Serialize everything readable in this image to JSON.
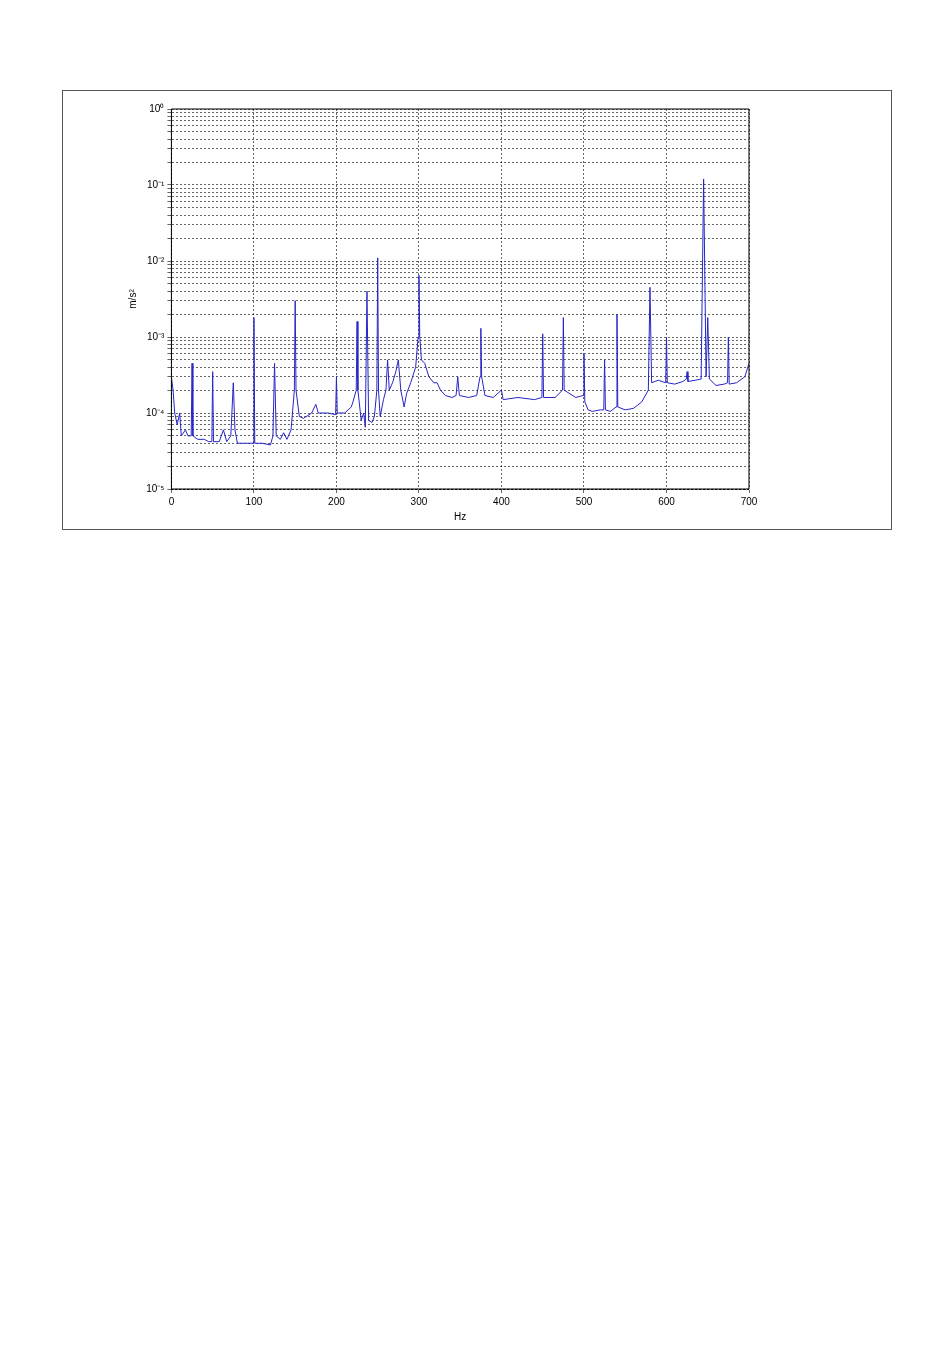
{
  "chart_data": {
    "type": "line",
    "xlabel": "Hz",
    "ylabel": "m/s²",
    "log": "y",
    "grid": true,
    "legend": false,
    "marker": "none",
    "line_style": "solid",
    "xlim": [
      0,
      700
    ],
    "xticks": [
      0,
      100,
      200,
      300,
      400,
      500,
      600,
      700
    ],
    "ylim": [
      1e-05,
      1
    ],
    "yticks": [
      {
        "value": 1e-05,
        "label": "10⁻⁵"
      },
      {
        "value": 2e-05,
        "label": null
      },
      {
        "value": 3e-05,
        "label": null
      },
      {
        "value": 4e-05,
        "label": null
      },
      {
        "value": 5e-05,
        "label": null
      },
      {
        "value": 6e-05,
        "label": null
      },
      {
        "value": 7e-05,
        "label": null
      },
      {
        "value": 8e-05,
        "label": null
      },
      {
        "value": 9e-05,
        "label": null
      },
      {
        "value": 0.0001,
        "label": "10⁻⁴"
      },
      {
        "value": 0.0002,
        "label": null
      },
      {
        "value": 0.0003,
        "label": null
      },
      {
        "value": 0.0004,
        "label": null
      },
      {
        "value": 0.0005,
        "label": null
      },
      {
        "value": 0.0006,
        "label": null
      },
      {
        "value": 0.0007,
        "label": null
      },
      {
        "value": 0.0008,
        "label": null
      },
      {
        "value": 0.0009,
        "label": null
      },
      {
        "value": 0.001,
        "label": "10⁻³"
      },
      {
        "value": 0.002,
        "label": null
      },
      {
        "value": 0.003,
        "label": null
      },
      {
        "value": 0.004,
        "label": null
      },
      {
        "value": 0.005,
        "label": null
      },
      {
        "value": 0.006,
        "label": null
      },
      {
        "value": 0.007,
        "label": null
      },
      {
        "value": 0.008,
        "label": null
      },
      {
        "value": 0.009,
        "label": null
      },
      {
        "value": 0.01,
        "label": "10⁻²"
      },
      {
        "value": 0.02,
        "label": null
      },
      {
        "value": 0.03,
        "label": null
      },
      {
        "value": 0.04,
        "label": null
      },
      {
        "value": 0.05,
        "label": null
      },
      {
        "value": 0.06,
        "label": null
      },
      {
        "value": 0.07,
        "label": null
      },
      {
        "value": 0.08,
        "label": null
      },
      {
        "value": 0.09,
        "label": null
      },
      {
        "value": 0.1,
        "label": "10⁻¹"
      },
      {
        "value": 0.2,
        "label": null
      },
      {
        "value": 0.3,
        "label": null
      },
      {
        "value": 0.4,
        "label": null
      },
      {
        "value": 0.5,
        "label": null
      },
      {
        "value": 0.6,
        "label": null
      },
      {
        "value": 0.7,
        "label": null
      },
      {
        "value": 0.8,
        "label": null
      },
      {
        "value": 0.9,
        "label": null
      },
      {
        "value": 1,
        "label": "10⁰"
      }
    ],
    "series": [
      {
        "color": "#2626c8",
        "x": [
          0,
          2,
          4,
          7,
          10,
          12,
          17,
          20,
          24,
          25,
          26,
          32,
          40,
          45,
          49,
          50,
          51,
          58,
          63,
          67,
          72,
          75,
          77,
          80,
          90,
          99,
          100,
          101,
          110,
          120,
          123,
          125,
          127,
          132,
          136,
          140,
          145,
          149,
          150,
          151,
          155,
          160,
          170,
          175,
          178,
          190,
          199,
          200,
          201,
          210,
          218,
          220,
          224,
          225,
          226,
          230,
          233,
          235,
          237,
          239,
          243,
          246,
          249,
          250,
          251,
          253,
          257,
          260,
          262,
          264,
          268,
          272,
          275,
          278,
          282,
          285,
          290,
          296,
          299,
          300,
          301,
          303,
          307,
          312,
          318,
          322,
          326,
          332,
          340,
          345,
          347,
          349,
          360,
          370,
          374,
          375,
          376,
          380,
          390,
          400,
          402,
          420,
          440,
          449,
          450,
          451,
          465,
          474,
          475,
          476,
          490,
          499,
          500,
          501,
          505,
          510,
          520,
          524,
          525,
          526,
          532,
          539,
          540,
          541,
          550,
          560,
          570,
          578,
          580,
          582,
          590,
          599,
          600,
          601,
          610,
          620,
          624,
          625,
          626,
          635,
          642,
          645,
          648,
          650,
          652,
          660,
          670,
          674,
          675,
          676,
          685,
          695,
          700
        ],
        "values": [
          0.0003,
          0.0002,
          0.0001,
          7e-05,
          0.0001,
          5e-05,
          6e-05,
          5e-05,
          5e-05,
          0.00045,
          5e-05,
          4.5e-05,
          4.5e-05,
          4.2e-05,
          4.2e-05,
          0.00035,
          4.2e-05,
          4.2e-05,
          6e-05,
          4.2e-05,
          5e-05,
          0.00025,
          6e-05,
          4e-05,
          4e-05,
          4e-05,
          0.0018,
          4e-05,
          4e-05,
          3.8e-05,
          5e-05,
          0.00045,
          5e-05,
          4.5e-05,
          5.5e-05,
          4.5e-05,
          6e-05,
          0.0002,
          0.003,
          0.0002,
          9e-05,
          8.5e-05,
          0.0001,
          0.00013,
          0.0001,
          0.0001,
          9.5e-05,
          0.0003,
          0.0001,
          0.0001,
          0.00012,
          0.00014,
          0.0002,
          0.0016,
          0.0002,
          8e-05,
          0.0001,
          6.5e-05,
          0.004,
          8e-05,
          7.5e-05,
          9e-05,
          0.0002,
          0.011,
          0.0002,
          9e-05,
          0.00015,
          0.0002,
          0.0005,
          0.0002,
          0.00025,
          0.00035,
          0.0005,
          0.0002,
          0.00012,
          0.00018,
          0.00025,
          0.0004,
          0.001,
          0.0065,
          0.001,
          0.0005,
          0.00045,
          0.0003,
          0.00025,
          0.00025,
          0.0002,
          0.00017,
          0.00016,
          0.00017,
          0.0003,
          0.00017,
          0.00016,
          0.00017,
          0.0003,
          0.0013,
          0.0003,
          0.00017,
          0.00016,
          0.0002,
          0.00015,
          0.00016,
          0.00015,
          0.00016,
          0.0011,
          0.00016,
          0.00016,
          0.0002,
          0.0018,
          0.0002,
          0.00016,
          0.00017,
          0.0006,
          0.00014,
          0.00011,
          0.000105,
          0.00011,
          0.00011,
          0.0005,
          0.00011,
          0.000105,
          0.00012,
          0.002,
          0.00012,
          0.00011,
          0.000115,
          0.00014,
          0.0002,
          0.0045,
          0.00025,
          0.00027,
          0.00025,
          0.001,
          0.00025,
          0.00024,
          0.00026,
          0.00028,
          0.00035,
          0.00026,
          0.00027,
          0.00028,
          0.12,
          0.0003,
          0.0018,
          0.00028,
          0.00023,
          0.00024,
          0.00025,
          0.001,
          0.00024,
          0.00025,
          0.0003,
          0.00045
        ]
      }
    ]
  }
}
